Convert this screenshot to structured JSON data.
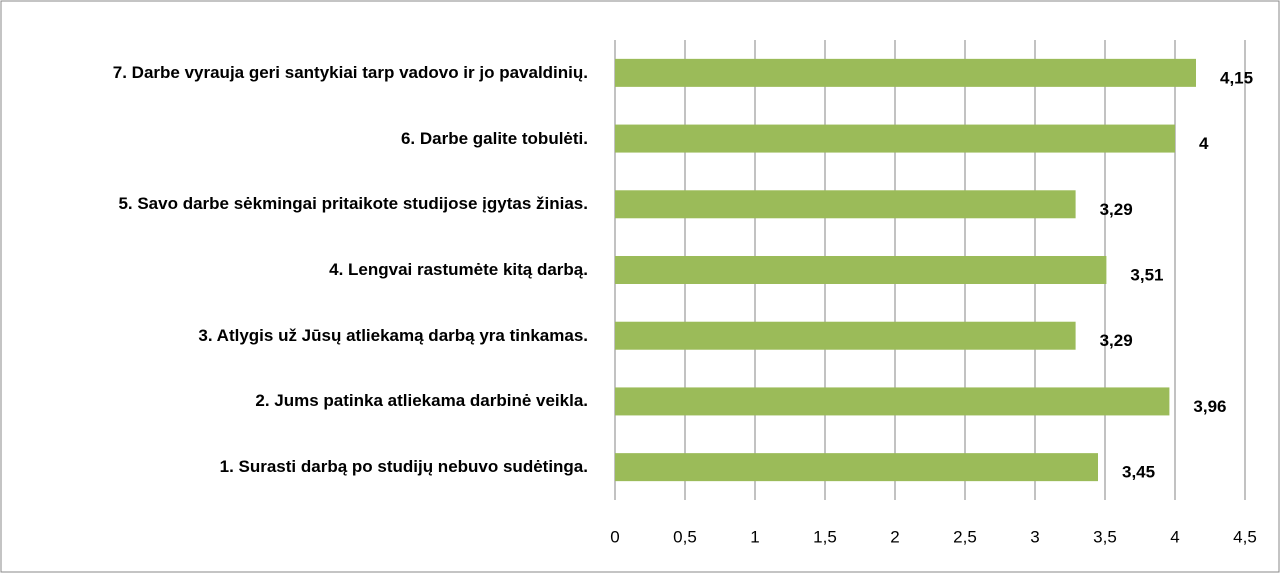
{
  "chart_data": {
    "type": "bar",
    "orientation": "horizontal",
    "categories": [
      "1. Surasti darbą po studijų nebuvo sudėtinga.",
      "2. Jums patinka atliekama darbinė veikla.",
      "3. Atlygis už Jūsų atliekamą darbą yra tinkamas.",
      "4. Lengvai rastumėte kitą darbą.",
      "5. Savo darbe sėkmingai pritaikote studijose įgytas žinias.",
      "6. Darbe galite tobulėti.",
      "7. Darbe vyrauja geri santykiai tarp vadovo ir jo pavaldinių."
    ],
    "values": [
      3.45,
      3.96,
      3.29,
      3.51,
      3.29,
      4,
      4.15
    ],
    "value_labels": [
      "3,45",
      "3,96",
      "3,29",
      "3,51",
      "3,29",
      "4",
      "4,15"
    ],
    "color": "#9bbb59",
    "xlim": [
      0,
      4.5
    ],
    "xticks": [
      0,
      {
        "value": 0.5,
        "label": "0,5"
      },
      1,
      {
        "value": 1.5,
        "label": "1,5"
      },
      2,
      {
        "value": 2.5,
        "label": "2,5"
      },
      3,
      {
        "value": 3.5,
        "label": "3,5"
      },
      4,
      {
        "value": 4.5,
        "label": "4,5"
      }
    ],
    "grid": true
  }
}
